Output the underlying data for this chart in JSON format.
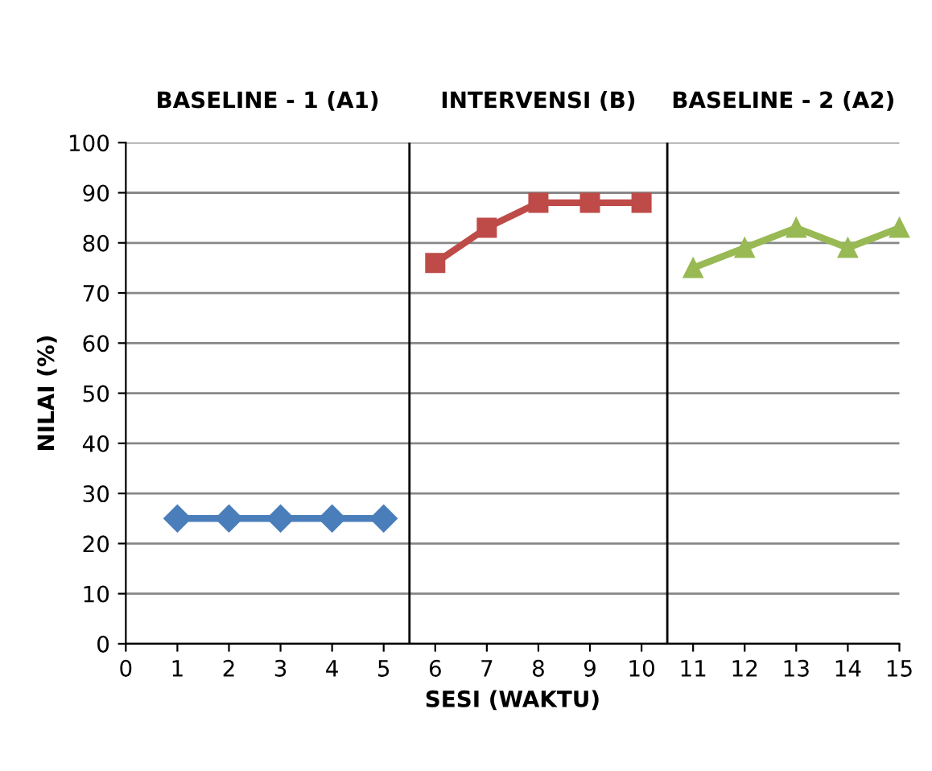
{
  "chart_data": {
    "type": "line",
    "xlabel": "SESI (WAKTU)",
    "ylabel": "NILAI (%)",
    "annotations": [
      "BASELINE - 1 (A1)",
      "INTERVENSI (B)",
      "BASELINE - 2 (A2)"
    ],
    "series": [
      {
        "x": [
          1,
          2,
          3,
          4,
          5
        ],
        "values": [
          25,
          25,
          25,
          25,
          25
        ],
        "color": "#4a7ebb",
        "marker": "diamond"
      },
      {
        "x": [
          6,
          7,
          8,
          9,
          10
        ],
        "values": [
          76,
          83,
          88,
          88,
          88
        ],
        "color": "#be4b48",
        "marker": "square"
      },
      {
        "x": [
          11,
          12,
          13,
          14,
          15
        ],
        "values": [
          75,
          79,
          83,
          79,
          83
        ],
        "color": "#98b954",
        "marker": "triangle"
      }
    ],
    "ref_lines": [
      {
        "axis": "x",
        "value": 5.5,
        "color": "#000000"
      },
      {
        "axis": "x",
        "value": 10.5,
        "color": "#000000"
      }
    ],
    "xlim": [
      0,
      15
    ],
    "xticks": [
      0,
      1,
      2,
      3,
      4,
      5,
      6,
      7,
      8,
      9,
      10,
      11,
      12,
      13,
      14,
      15
    ],
    "ylim": [
      0,
      100
    ],
    "yticks": [
      0,
      10,
      20,
      30,
      40,
      50,
      60,
      70,
      80,
      90,
      100
    ],
    "grid": "y",
    "line_style": "solid"
  }
}
